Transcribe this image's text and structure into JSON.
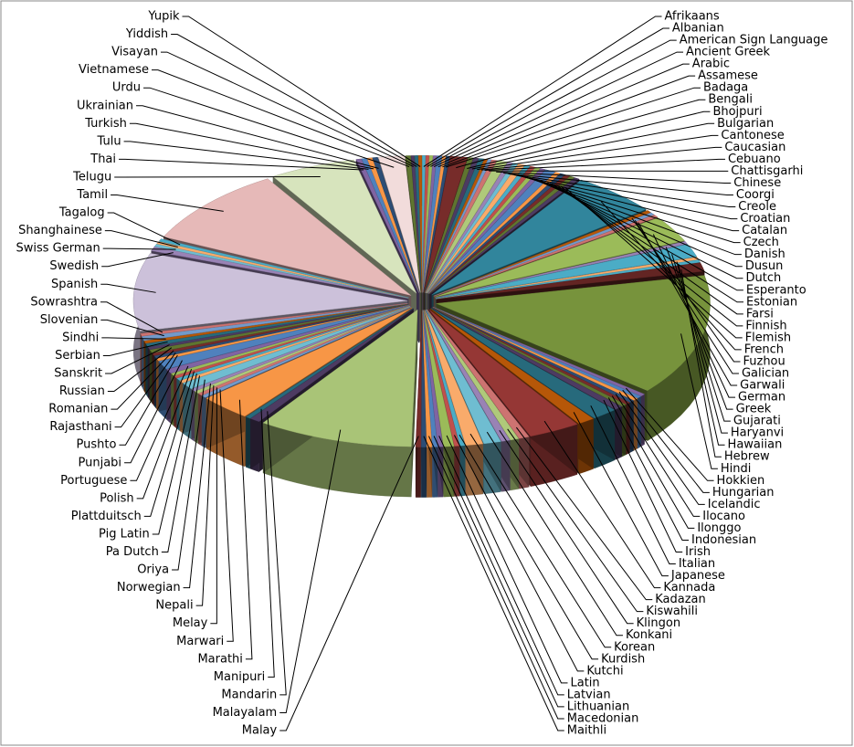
{
  "chart_data": {
    "type": "pie3d",
    "categories": [
      "Afrikaans",
      "Albanian",
      "American Sign Language",
      "Ancient Greek",
      "Arabic",
      "Assamese",
      "Badaga",
      "Bengali",
      "Bhojpuri",
      "Bulgarian",
      "Cantonese",
      "Caucasian",
      "Cebuano",
      "Chattisgarhi",
      "Chinese",
      "Coorgi",
      "Creole",
      "Croatian",
      "Catalan",
      "Czech",
      "Danish",
      "Dusun",
      "Dutch",
      "Esperanto",
      "Estonian",
      "Farsi",
      "Finnish",
      "Flemish",
      "French",
      "Fuzhou",
      "Galician",
      "Garwali",
      "German",
      "Greek",
      "Gujarati",
      "Haryanvi",
      "Hawaiian",
      "Hebrew",
      "Hindi",
      "Hokkien",
      "Hungarian",
      "Icelandic",
      "Ilocano",
      "Ilonggo",
      "Indonesian",
      "Irish",
      "Italian",
      "Japanese",
      "Kannada",
      "Kadazan",
      "Kiswahili",
      "Klingon",
      "Konkani",
      "Korean",
      "Kurdish",
      "Kutchi",
      "Latin",
      "Latvian",
      "Lithuanian",
      "Macedonian",
      "Maithli",
      "Malay",
      "Malayalam",
      "Mandarin",
      "Manipuri",
      "Marathi",
      "Marwari",
      "Melay",
      "Nepali",
      "Norwegian",
      "Oriya",
      "Pa Dutch",
      "Pig Latin",
      "Plattduitsch",
      "Polish",
      "Portuguese",
      "Punjabi",
      "Pushto",
      "Rajasthani",
      "Romanian",
      "Russian",
      "Sanskrit",
      "Serbian",
      "Sindhi",
      "Slovenian",
      "Sowrashtra",
      "Spanish",
      "Swedish",
      "Swiss German",
      "Shanghainese",
      "Tagalog",
      "Tamil",
      "Telugu",
      "Thai",
      "Tulu",
      "Turkish",
      "Ukrainian",
      "Urdu",
      "Vietnamese",
      "Visayan",
      "Yiddish",
      "Yupik"
    ],
    "values": [
      0.2,
      0.2,
      0.2,
      0.2,
      0.3,
      0.2,
      0.2,
      1,
      0.3,
      0.3,
      0.3,
      0.2,
      0.2,
      0.3,
      0.6,
      0.3,
      0.3,
      0.4,
      0.3,
      0.3,
      0.3,
      0.3,
      0.6,
      0.3,
      0.3,
      0.3,
      0.3,
      0.3,
      5,
      0.3,
      0.3,
      0.3,
      3,
      0.3,
      1.5,
      0.3,
      0.3,
      1,
      14,
      0.3,
      0.3,
      0.3,
      0.3,
      0.3,
      0.3,
      0.5,
      1.5,
      1,
      3,
      0.6,
      0.5,
      0.5,
      1,
      1,
      0.3,
      0.3,
      0.6,
      0.3,
      0.3,
      0.3,
      0.3,
      0.3,
      9,
      0.6,
      0.3,
      3,
      0.3,
      0.3,
      0.3,
      0.3,
      0.8,
      0.3,
      0.3,
      0.3,
      0.3,
      0.5,
      1,
      0.3,
      0.3,
      0.3,
      0.4,
      0.3,
      0.4,
      0.3,
      0.5,
      0.3,
      9,
      0.5,
      0.3,
      0.3,
      0.3,
      9,
      5,
      0.3,
      0.3,
      0.3,
      0.3,
      1.5,
      0.3,
      0.2,
      0.2,
      0.2
    ],
    "palette": [
      "#4bacc6",
      "#c0504d",
      "#9bbb59",
      "#8064a2",
      "#4f81bd",
      "#f79646",
      "#2c4d75",
      "#772c2a",
      "#5f7530",
      "#4d3b62",
      "#276a7c",
      "#b65708",
      "#729aca",
      "#cd7371",
      "#afc97a",
      "#9983b5",
      "#6fbdd1",
      "#f9ab6b"
    ],
    "slice_colors": {
      "French": "#31859c",
      "Hindi": "#77933c",
      "Tamil": "#e6b9b8",
      "Spanish": "#ccc1da",
      "Telugu": "#d7e4bd",
      "Malayalam": "#a9c477",
      "Marathi": "#f79646",
      "Kannada": "#953735",
      "Urdu": "#f2dcdb",
      "German": "#9bbb59",
      "Gujarati": "#4bacc6",
      "Hebrew": "#632523"
    }
  }
}
